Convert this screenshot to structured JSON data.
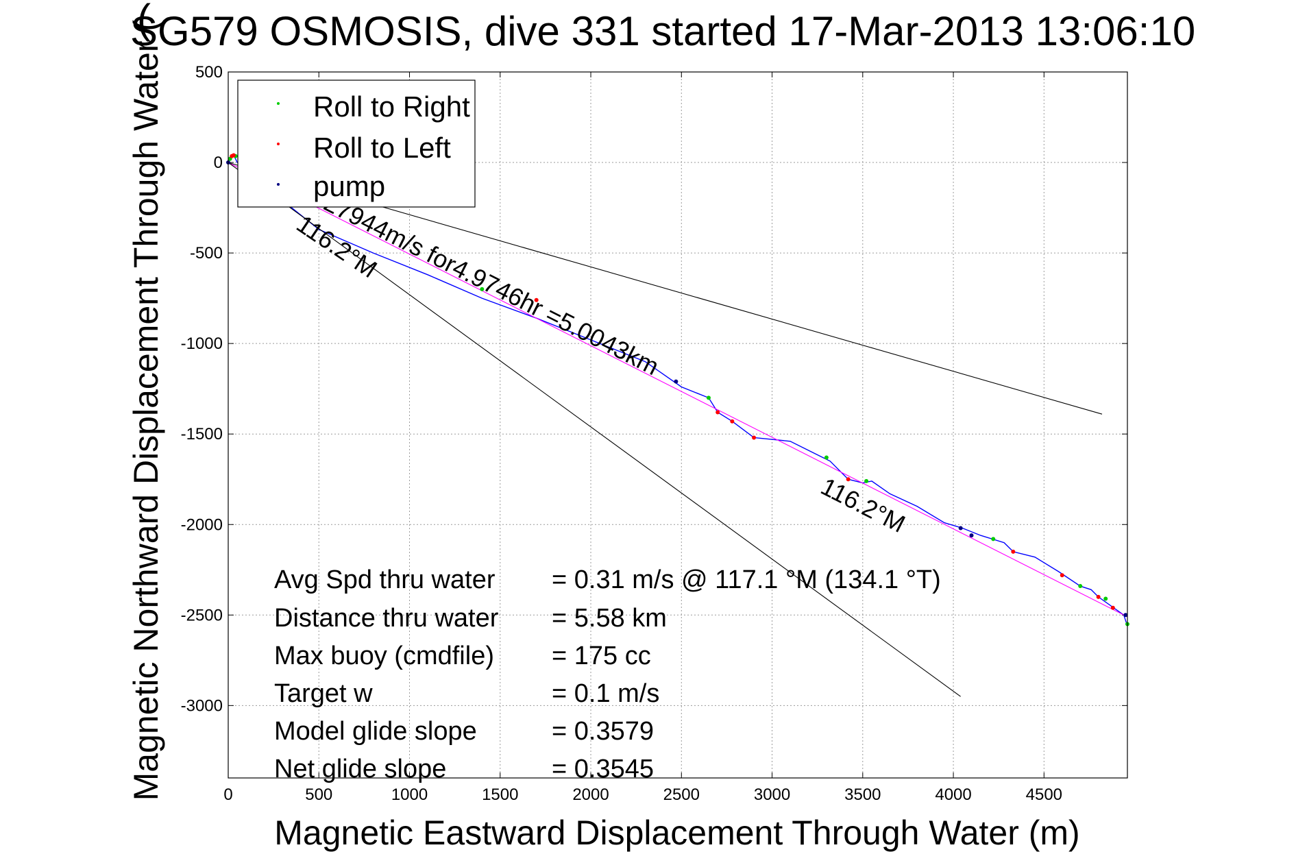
{
  "chart_data": {
    "type": "line",
    "title": "SG579 OSMOSIS, dive 331 started 17-Mar-2013 13:06:10",
    "title_prefix_obscured": "(",
    "xlabel": "Magnetic Eastward Displacement Through Water (m)",
    "ylabel": "Magnetic Northward Displacement Through Water (m)",
    "ylabel_shown": "Magnetic Northward Displacement Through Water (",
    "xlim": [
      0,
      4960
    ],
    "ylim": [
      -3400,
      500
    ],
    "xticks": [
      0,
      500,
      1000,
      1500,
      2000,
      2500,
      3000,
      3500,
      4000,
      4500
    ],
    "yticks": [
      500,
      0,
      -500,
      -1000,
      -1500,
      -2000,
      -2500,
      -3000
    ],
    "grid": true,
    "legend": {
      "location": "top-left",
      "entries": [
        {
          "label": "Roll to Right",
          "color": "#00cc00",
          "marker": "dot"
        },
        {
          "label": "Roll to Left",
          "color": "#ff0000",
          "marker": "dot"
        },
        {
          "label": "pump",
          "color": "#000080",
          "marker": "dot"
        }
      ]
    },
    "series": [
      {
        "role": "track",
        "color": "#0000ff",
        "x": [
          0,
          10,
          20,
          35,
          50,
          100,
          250,
          500,
          800,
          1100,
          1400,
          1700,
          2000,
          2300,
          2500,
          2650,
          2700,
          2780,
          2900,
          3000,
          3100,
          3200,
          3280,
          3320,
          3420,
          3500,
          3550,
          3650,
          3800,
          3950,
          4050,
          4150,
          4280,
          4330,
          4450,
          4580,
          4700,
          4760,
          4800,
          4870,
          4940,
          4960
        ],
        "y": [
          0,
          30,
          40,
          30,
          0,
          -20,
          -170,
          -370,
          -500,
          -620,
          -750,
          -860,
          -980,
          -1100,
          -1240,
          -1300,
          -1380,
          -1430,
          -1520,
          -1530,
          -1540,
          -1590,
          -1630,
          -1650,
          -1750,
          -1770,
          -1760,
          -1830,
          -1900,
          -1990,
          -2020,
          -2060,
          -2100,
          -2150,
          -2180,
          -2260,
          -2340,
          -2360,
          -2400,
          -2450,
          -2500,
          -2560
        ]
      },
      {
        "role": "reference-line",
        "color": "#ff00ff",
        "x": [
          0,
          4960
        ],
        "y": [
          0,
          -2510
        ]
      },
      {
        "role": "heading-line",
        "color": "#000000",
        "x": [
          0,
          4040
        ],
        "y": [
          0,
          -2950
        ]
      },
      {
        "role": "heading-line",
        "color": "#000000",
        "x": [
          0,
          4820
        ],
        "y": [
          0,
          -1390
        ]
      }
    ],
    "markers": {
      "roll_right": {
        "color": "#00cc00",
        "x": [
          10,
          40,
          1400,
          2650,
          3300,
          3520,
          4220,
          4700,
          4840,
          4960
        ],
        "y": [
          20,
          35,
          -700,
          -1300,
          -1630,
          -1760,
          -2080,
          -2340,
          -2410,
          -2550
        ]
      },
      "roll_left": {
        "color": "#ff0000",
        "x": [
          20,
          30,
          1700,
          2700,
          2780,
          2900,
          3420,
          4330,
          4600,
          4800,
          4880
        ],
        "y": [
          35,
          40,
          -760,
          -1380,
          -1430,
          -1520,
          -1750,
          -2150,
          -2280,
          -2400,
          -2460
        ]
      },
      "pump": {
        "color": "#000080",
        "x": [
          0,
          2470,
          4040,
          4100,
          4950
        ],
        "y": [
          0,
          -1210,
          -2020,
          -2060,
          -2500
        ]
      }
    },
    "annotations": [
      {
        "text": "1.27944m/s for4.9746hr =5.0043km",
        "shown": "27944m/s for4.9746hr =5.0043km",
        "x": 570,
        "y": -220
      },
      {
        "text": "116.2°M",
        "x": 380,
        "y": -300
      },
      {
        "text": "116.2°M",
        "x": 3260,
        "y": -1720
      }
    ],
    "stats": [
      {
        "label": "Avg Spd thru water",
        "value": "=  0.31 m/s @ 117.1 °M (134.1 °T)"
      },
      {
        "label": "Distance thru water",
        "value": "=  5.58 km"
      },
      {
        "label": "Max buoy (cmdfile)",
        "value": "= 175 cc"
      },
      {
        "label": "Target w",
        "value": "= 0.1 m/s"
      },
      {
        "label": "Model glide slope",
        "value": "= 0.3579"
      },
      {
        "label": "Net glide slope",
        "value": "= 0.3545"
      }
    ]
  }
}
